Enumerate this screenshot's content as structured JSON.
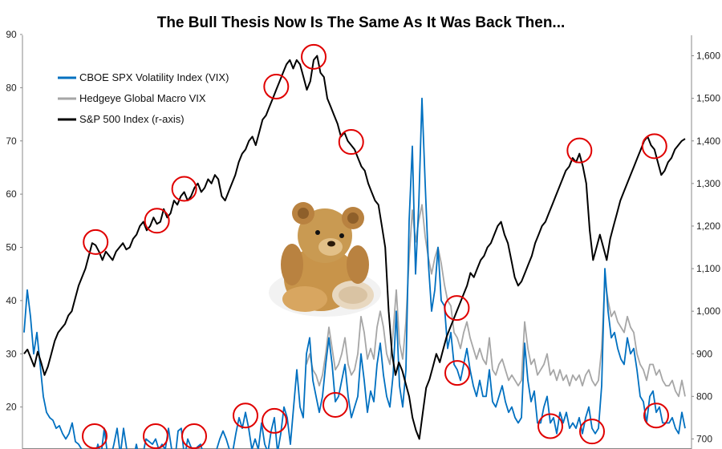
{
  "chart_data": {
    "type": "line",
    "title": "The Bull Thesis Now Is The Same As It Was Back Then...",
    "left_axis": {
      "ylim": [
        10,
        90
      ],
      "ticks": [
        "20",
        "30",
        "40",
        "50",
        "60",
        "70",
        "80",
        "90"
      ],
      "tick_values": [
        20,
        30,
        40,
        50,
        60,
        70,
        80,
        90
      ]
    },
    "right_axis": {
      "ylim": [
        650,
        1650
      ],
      "ticks": [
        "700",
        "800",
        "900",
        "1,000",
        "1,100",
        "1,200",
        "1,300",
        "1,400",
        "1,500",
        "1,600"
      ],
      "tick_values": [
        700,
        800,
        900,
        1000,
        1100,
        1200,
        1300,
        1400,
        1500,
        1600
      ]
    },
    "legend": {
      "placement": "top-left"
    },
    "series": [
      {
        "name": "CBOE SPX Volatility Index (VIX)",
        "color": "#0070C0",
        "axis": "left",
        "values": [
          34,
          42,
          37,
          30,
          34,
          28,
          22,
          19,
          18,
          17.5,
          16,
          16.5,
          15,
          14,
          15,
          17,
          13.5,
          13,
          12,
          11,
          11.5,
          12,
          10.5,
          13,
          11,
          16,
          11,
          10.5,
          13,
          16,
          11,
          16,
          12,
          11,
          10,
          13,
          10,
          11,
          14,
          13.5,
          13,
          14,
          12,
          13,
          12,
          16,
          12,
          10,
          15.5,
          16,
          10.5,
          14,
          12.5,
          11.5,
          12.5,
          13,
          11,
          10,
          10,
          11,
          12,
          14,
          15.5,
          14,
          12,
          11.5,
          15,
          18,
          16,
          19,
          16,
          12,
          14,
          12,
          17,
          13,
          11.5,
          15.5,
          18,
          11.5,
          15,
          20,
          18,
          13,
          20,
          27,
          20,
          18,
          30,
          33,
          25,
          22,
          19,
          22,
          28,
          33,
          28,
          21,
          22,
          25,
          28,
          22,
          18,
          20,
          22,
          30,
          25,
          19,
          23,
          21,
          28,
          32,
          26,
          22,
          20,
          26,
          38,
          24,
          20,
          27,
          55,
          69,
          45,
          58,
          78,
          62,
          47,
          38,
          42,
          50,
          40,
          39,
          31,
          34,
          28,
          27,
          25,
          28,
          31,
          27,
          24,
          22,
          25,
          22,
          22,
          27,
          21,
          20,
          22,
          24,
          21,
          19,
          20,
          18,
          17,
          18,
          32,
          25,
          21,
          23,
          17,
          17,
          20,
          22,
          17,
          18,
          15,
          19,
          17,
          19,
          16,
          17,
          16,
          18,
          15,
          18,
          20,
          16,
          15,
          16,
          24,
          46,
          38,
          33,
          34,
          31,
          29,
          28,
          33,
          30,
          31,
          27,
          22,
          21,
          17,
          22,
          23,
          19,
          20,
          17,
          17,
          17,
          18,
          16,
          15,
          19,
          16
        ],
        "markers": false
      },
      {
        "name": "Hedgeye Global Macro VIX",
        "color": "#A6A6A6",
        "axis": "left",
        "values": [
          null,
          null,
          null,
          null,
          null,
          null,
          null,
          null,
          null,
          null,
          null,
          null,
          null,
          null,
          null,
          null,
          null,
          null,
          null,
          null,
          null,
          null,
          null,
          null,
          null,
          null,
          null,
          null,
          null,
          null,
          null,
          null,
          null,
          null,
          null,
          null,
          null,
          null,
          null,
          null,
          null,
          null,
          null,
          null,
          null,
          null,
          null,
          null,
          null,
          null,
          null,
          null,
          null,
          null,
          null,
          null,
          null,
          null,
          null,
          null,
          null,
          null,
          null,
          null,
          null,
          null,
          null,
          null,
          null,
          null,
          null,
          null,
          null,
          null,
          null,
          null,
          null,
          null,
          null,
          null,
          null,
          null,
          null,
          null,
          null,
          null,
          null,
          null,
          28,
          30,
          27,
          26,
          24,
          26,
          30,
          35,
          31,
          27,
          28,
          30,
          33,
          28,
          26,
          27,
          30,
          37,
          34,
          29,
          31,
          29,
          35,
          38,
          35,
          30,
          28,
          34,
          42,
          32,
          29,
          36,
          48,
          57,
          51,
          55,
          58,
          52,
          48,
          45,
          48,
          50,
          47,
          43,
          40,
          39,
          34,
          33,
          31,
          34,
          36,
          33,
          31,
          29,
          31,
          29,
          28,
          33,
          27,
          26,
          28,
          29,
          27,
          25,
          26,
          25,
          24,
          25,
          36,
          31,
          28,
          29,
          26,
          27,
          28,
          30,
          26,
          27,
          25,
          27,
          25,
          26,
          24,
          26,
          25,
          26,
          24,
          26,
          27,
          25,
          24,
          25,
          31,
          44,
          40,
          37,
          38,
          36,
          35,
          34,
          37,
          35,
          34,
          30,
          28,
          27,
          25,
          28,
          28,
          26,
          27,
          25,
          24,
          24,
          25,
          23,
          22,
          25,
          22
        ],
        "markers": false
      },
      {
        "name": "S&P 500 Index (r-axis)",
        "color": "#000000",
        "axis": "right",
        "values": [
          900,
          910,
          890,
          870,
          905,
          880,
          850,
          870,
          900,
          930,
          950,
          960,
          970,
          990,
          1000,
          1030,
          1060,
          1080,
          1100,
          1130,
          1160,
          1155,
          1140,
          1120,
          1140,
          1130,
          1120,
          1140,
          1150,
          1160,
          1145,
          1150,
          1170,
          1180,
          1200,
          1210,
          1190,
          1200,
          1220,
          1205,
          1210,
          1240,
          1220,
          1230,
          1260,
          1250,
          1270,
          1280,
          1260,
          1270,
          1290,
          1300,
          1280,
          1290,
          1310,
          1300,
          1320,
          1310,
          1270,
          1260,
          1280,
          1300,
          1320,
          1350,
          1370,
          1380,
          1400,
          1410,
          1390,
          1420,
          1450,
          1460,
          1480,
          1500,
          1520,
          1540,
          1560,
          1580,
          1590,
          1570,
          1590,
          1580,
          1550,
          1520,
          1540,
          1590,
          1600,
          1560,
          1550,
          1500,
          1480,
          1460,
          1440,
          1410,
          1420,
          1400,
          1390,
          1380,
          1360,
          1340,
          1330,
          1300,
          1280,
          1260,
          1250,
          1200,
          1150,
          1000,
          900,
          850,
          880,
          860,
          830,
          800,
          750,
          720,
          700,
          760,
          820,
          840,
          870,
          900,
          880,
          910,
          940,
          960,
          980,
          1000,
          1020,
          1040,
          1060,
          1090,
          1080,
          1100,
          1120,
          1130,
          1150,
          1160,
          1180,
          1200,
          1210,
          1180,
          1160,
          1120,
          1080,
          1060,
          1070,
          1090,
          1110,
          1130,
          1160,
          1180,
          1200,
          1210,
          1230,
          1250,
          1270,
          1290,
          1310,
          1330,
          1340,
          1360,
          1350,
          1370,
          1340,
          1300,
          1190,
          1120,
          1150,
          1180,
          1150,
          1120,
          1170,
          1200,
          1230,
          1260,
          1280,
          1300,
          1320,
          1340,
          1360,
          1380,
          1400,
          1410,
          1390,
          1380,
          1350,
          1320,
          1330,
          1350,
          1360,
          1380,
          1390,
          1400,
          1405
        ],
        "markers": false
      }
    ],
    "highlight_circles": {
      "color": "#E00000",
      "series": "S&P 500 Index (r-axis)",
      "top_indices": [
        21,
        39,
        47,
        74,
        85,
        96,
        127,
        163,
        185,
        197
      ],
      "bottom_indices": [
        22,
        41,
        53,
        69,
        78,
        97,
        135,
        164,
        177,
        197
      ]
    },
    "decoration": {
      "icon": "teddy-bear-icon"
    }
  }
}
